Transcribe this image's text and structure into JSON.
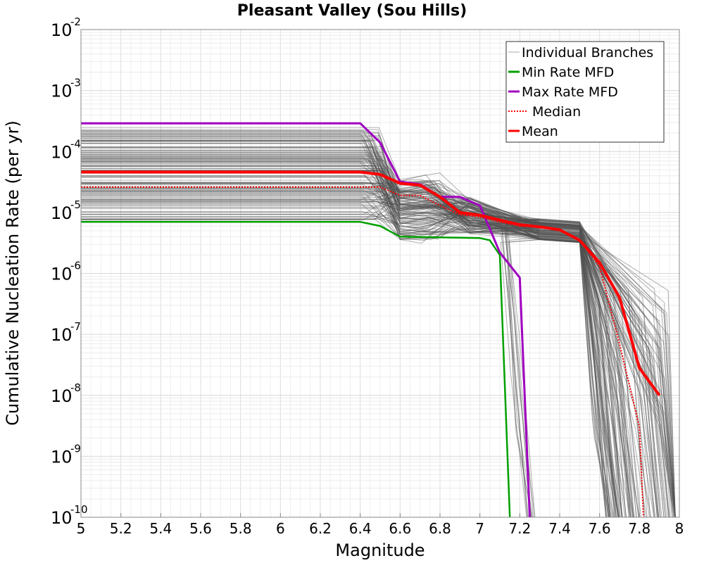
{
  "chart_data": {
    "type": "line",
    "title": "Pleasant Valley (Sou Hills)",
    "xlabel": "Magnitude",
    "ylabel": "Cumulative Nucleation Rate (per yr)",
    "xlim": [
      5,
      8
    ],
    "ylim_log10": [
      -10,
      -2
    ],
    "y_scale": "log",
    "grid": true,
    "legend_position": "top-right",
    "x_ticks": [
      "5",
      "5.2",
      "5.4",
      "5.6",
      "5.8",
      "6",
      "6.2",
      "6.4",
      "6.6",
      "6.8",
      "7",
      "7.2",
      "7.4",
      "7.6",
      "7.8",
      "8"
    ],
    "y_ticks": [
      {
        "base": "10",
        "exp": "-10",
        "log": -10
      },
      {
        "base": "10",
        "exp": "-9",
        "log": -9
      },
      {
        "base": "10",
        "exp": "-8",
        "log": -8
      },
      {
        "base": "10",
        "exp": "-7",
        "log": -7
      },
      {
        "base": "10",
        "exp": "-6",
        "log": -6
      },
      {
        "base": "10",
        "exp": "-5",
        "log": -5
      },
      {
        "base": "10",
        "exp": "-4",
        "log": -4
      },
      {
        "base": "10",
        "exp": "-3",
        "log": -3
      },
      {
        "base": "10",
        "exp": "-2",
        "log": -2
      }
    ],
    "branches_note": "Individual Branches drawn as many thin gray curves spanning approx 7e-6 to 2.5e-4 at low magnitude",
    "series": [
      {
        "name": "Min Rate MFD",
        "color": "#00a000",
        "style": "solid",
        "x": [
          5.0,
          6.4,
          6.5,
          6.6,
          7.0,
          7.05,
          7.1,
          7.15
        ],
        "y": [
          7e-06,
          7e-06,
          6e-06,
          4e-06,
          3.8e-06,
          3.5e-06,
          2e-06,
          1e-10
        ]
      },
      {
        "name": "Max Rate MFD",
        "color": "#a000c0",
        "style": "solid",
        "x": [
          5.0,
          6.4,
          6.5,
          6.6,
          6.7,
          6.8,
          6.9,
          7.0,
          7.1,
          7.2,
          7.25
        ],
        "y": [
          0.00029,
          0.00029,
          0.00014,
          3.2e-05,
          2.9e-05,
          1.8e-05,
          1.8e-05,
          1.3e-05,
          2.2e-06,
          8.5e-07,
          1e-10
        ]
      },
      {
        "name": "Median",
        "color": "#ff0000",
        "style": "dotted",
        "x": [
          5.0,
          6.4,
          6.5,
          6.6,
          6.7,
          6.8,
          6.9,
          7.0,
          7.1,
          7.2,
          7.3,
          7.4,
          7.5,
          7.6,
          7.7,
          7.8,
          7.82
        ],
        "y": [
          2.6e-05,
          2.6e-05,
          2.6e-05,
          1.9e-05,
          1.9e-05,
          1.3e-05,
          9.2e-06,
          8.5e-06,
          7e-06,
          6e-06,
          5.8e-06,
          5.2e-06,
          3.5e-06,
          1.3e-06,
          7e-08,
          3e-09,
          1e-10
        ]
      },
      {
        "name": "Mean",
        "color": "#ff0000",
        "style": "solid",
        "x": [
          5.0,
          6.4,
          6.5,
          6.6,
          6.7,
          6.8,
          6.9,
          7.0,
          7.1,
          7.2,
          7.3,
          7.4,
          7.5,
          7.6,
          7.7,
          7.8,
          7.9
        ],
        "y": [
          4.6e-05,
          4.6e-05,
          4.2e-05,
          3e-05,
          2.8e-05,
          1.8e-05,
          1e-05,
          9e-06,
          7.5e-06,
          6.3e-06,
          5.8e-06,
          5.2e-06,
          3.5e-06,
          1.5e-06,
          4e-07,
          2.8e-08,
          1e-08
        ]
      }
    ],
    "legend": [
      {
        "label": "Individual Branches",
        "color": "#aaaaaa",
        "style": "thin"
      },
      {
        "label": "Min Rate MFD",
        "color": "#00a000",
        "style": "solid"
      },
      {
        "label": "Max Rate MFD",
        "color": "#a000c0",
        "style": "solid"
      },
      {
        "label": "Median",
        "color": "#ff0000",
        "style": "dotted"
      },
      {
        "label": "Mean",
        "color": "#ff0000",
        "style": "solid"
      }
    ]
  }
}
